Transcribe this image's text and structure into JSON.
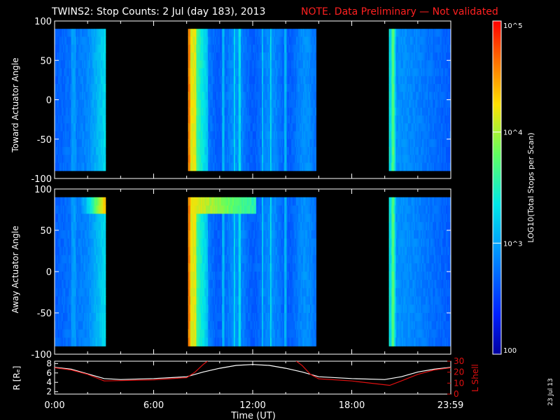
{
  "header": {
    "title": "TWINS2: Stop Counts:  2 Jul (day 183), 2013",
    "note": "NOTE. Data Preliminary — Not validated",
    "title_color": "#ffffff",
    "note_color": "#ff2020"
  },
  "side_date": "23 Jul 13",
  "chart_data": [
    {
      "type": "heatmap",
      "panel": "toward",
      "ylabel": "Toward Actuator Angle",
      "ylim": [
        -100,
        100
      ],
      "yticks": [
        "100",
        "50",
        "0",
        "-50",
        "-100"
      ],
      "xlim_hours": [
        0,
        24
      ],
      "data_extent": [
        -90,
        90
      ],
      "data_blocks": [
        {
          "start": "00:00",
          "end": "03:05",
          "level": "low-mid"
        },
        {
          "start": "08:05",
          "end": "15:50",
          "level": "high-then-mid"
        },
        {
          "start": "20:15",
          "end": "23:59",
          "level": "mid"
        }
      ],
      "no_data": [
        {
          "start": "03:05",
          "end": "08:05"
        },
        {
          "start": "15:50",
          "end": "20:15"
        }
      ]
    },
    {
      "type": "heatmap",
      "panel": "away",
      "ylabel": "Away Actuator Angle",
      "ylim": [
        -100,
        100
      ],
      "yticks": [
        "100",
        "50",
        "0",
        "-50",
        "-100"
      ],
      "xlim_hours": [
        0,
        24
      ],
      "data_extent": [
        -90,
        90
      ],
      "data_blocks": [
        {
          "start": "00:00",
          "end": "03:05",
          "level": "low-mid"
        },
        {
          "start": "08:05",
          "end": "15:50",
          "level": "high-then-mid"
        },
        {
          "start": "20:15",
          "end": "23:59",
          "level": "mid"
        }
      ],
      "no_data": [
        {
          "start": "03:05",
          "end": "08:05"
        },
        {
          "start": "15:50",
          "end": "20:15"
        }
      ]
    },
    {
      "type": "line",
      "panel": "ephemeris",
      "ylabel_left": "R [Rₑ]",
      "ylabel_right": "L Shell",
      "left_ticks": [
        "8",
        "6",
        "4",
        "2"
      ],
      "right_ticks": [
        "30",
        "20",
        "10",
        "0"
      ],
      "left_ylim": [
        1.5,
        8.5
      ],
      "right_ylim": [
        0,
        30
      ],
      "xlabel": "Time (UT)",
      "xticks": [
        "0:00",
        "6:00",
        "12:00",
        "18:00",
        "23:59"
      ],
      "series": [
        {
          "color": "#ffffff",
          "axis": "R",
          "x_hours": [
            0,
            1,
            2,
            3,
            4,
            6,
            8,
            9,
            10,
            11,
            12,
            13,
            14,
            15,
            16,
            18,
            20,
            21,
            22,
            23,
            24
          ],
          "values": [
            7.2,
            6.8,
            5.8,
            4.8,
            4.6,
            4.8,
            5.2,
            6.2,
            7.0,
            7.6,
            7.8,
            7.6,
            7.0,
            6.2,
            5.2,
            4.8,
            4.6,
            5.2,
            6.2,
            6.8,
            7.2
          ]
        },
        {
          "color": "#e01010",
          "axis": "L",
          "x_hours": [
            0,
            1,
            2,
            3,
            6,
            8,
            8.5,
            9,
            9.6,
            14.3,
            15,
            15.5,
            16,
            18,
            20.3,
            21,
            22,
            23,
            24
          ],
          "values": [
            24,
            22,
            18,
            12,
            13,
            15,
            20,
            27,
            34,
            34,
            26,
            18,
            14,
            12,
            8,
            12,
            18,
            22,
            24
          ]
        }
      ]
    }
  ],
  "colorbar": {
    "label": "LOG10(Total Stops per Scan)",
    "ticks": [
      "10^5",
      "10^4",
      "10^3",
      "100"
    ],
    "tick_values": [
      5,
      4,
      3,
      2
    ]
  }
}
